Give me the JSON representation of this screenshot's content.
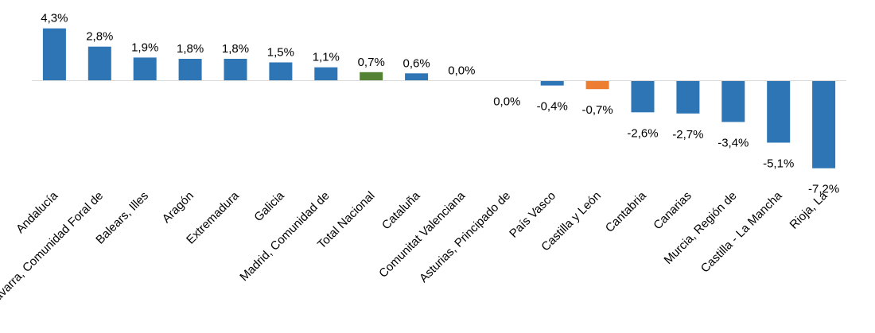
{
  "chart_data": {
    "type": "bar",
    "categories": [
      "Andalucía",
      "Navarra, Comunidad Foral de",
      "Balears, Illes",
      "Aragón",
      "Extremadura",
      "Galicia",
      "Madrid, Comunidad de",
      "Total Nacional",
      "Cataluña",
      "Comunitat Valenciana",
      "Asturias, Principado de",
      "País Vasco",
      "Castilla y León",
      "Cantabria",
      "Canarias",
      "Murcia, Región de",
      "Castilla - La Mancha",
      "Rioja, La"
    ],
    "values": [
      4.3,
      2.8,
      1.9,
      1.8,
      1.8,
      1.5,
      1.1,
      0.7,
      0.6,
      0.0,
      0.0,
      -0.4,
      -0.7,
      -2.6,
      -2.7,
      -3.4,
      -5.1,
      -7.2
    ],
    "data_labels": [
      "4,3%",
      "2,8%",
      "1,9%",
      "1,8%",
      "1,8%",
      "1,5%",
      "1,1%",
      "0,7%",
      "0,6%",
      "0,0%",
      "0,0%",
      "-0,4%",
      "-0,7%",
      "-2,6%",
      "-2,7%",
      "-3,4%",
      "-5,1%",
      "-7,2%"
    ],
    "colors": [
      "#2e75b6",
      "#2e75b6",
      "#2e75b6",
      "#2e75b6",
      "#2e75b6",
      "#2e75b6",
      "#2e75b6",
      "#548235",
      "#2e75b6",
      "#2e75b6",
      "#2e75b6",
      "#2e75b6",
      "#ed7d31",
      "#2e75b6",
      "#2e75b6",
      "#2e75b6",
      "#2e75b6",
      "#2e75b6"
    ],
    "axis_color": "#d9d9d9",
    "ylim": [
      -7.2,
      4.3
    ],
    "grid": false,
    "legend": "none"
  }
}
